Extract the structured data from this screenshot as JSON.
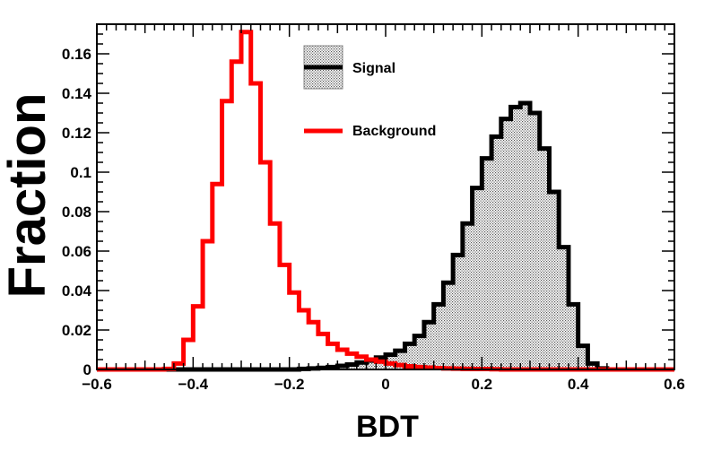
{
  "chart_data": {
    "type": "histogram",
    "xlabel": "BDT",
    "ylabel": "Fraction",
    "xlim": [
      -0.6,
      0.6
    ],
    "ylim": [
      0,
      0.175
    ],
    "grid": false,
    "legend_position": "top-center",
    "x_ticks": [
      -0.6,
      -0.4,
      -0.2,
      0,
      0.2,
      0.4,
      0.6
    ],
    "x_tick_labels": [
      "−0.6",
      "−0.4",
      "−0.2",
      "0",
      "0.2",
      "0.4",
      "0.6"
    ],
    "y_ticks": [
      0,
      0.02,
      0.04,
      0.06,
      0.08,
      0.1,
      0.12,
      0.14,
      0.16
    ],
    "y_tick_labels": [
      "0",
      "0.02",
      "0.04",
      "0.06",
      "0.08",
      "0.1",
      "0.12",
      "0.14",
      "0.16"
    ],
    "bin_edges": [
      -0.6,
      -0.58,
      -0.56,
      -0.54,
      -0.52,
      -0.5,
      -0.48,
      -0.46,
      -0.44,
      -0.42,
      -0.4,
      -0.38,
      -0.36,
      -0.34,
      -0.32,
      -0.3,
      -0.28,
      -0.26,
      -0.24,
      -0.22,
      -0.2,
      -0.18,
      -0.16,
      -0.14,
      -0.12,
      -0.1,
      -0.08,
      -0.06,
      -0.04,
      -0.02,
      0,
      0.02,
      0.04,
      0.06,
      0.08,
      0.1,
      0.12,
      0.14,
      0.16,
      0.18,
      0.2,
      0.22,
      0.24,
      0.26,
      0.28,
      0.3,
      0.32,
      0.34,
      0.36,
      0.38,
      0.4,
      0.42,
      0.44,
      0.46,
      0.48,
      0.5,
      0.52,
      0.54,
      0.56,
      0.58,
      0.6
    ],
    "series": [
      {
        "name": "Signal",
        "color": "#000000",
        "fill": "hatched-gray",
        "values": [
          0,
          0,
          0,
          0,
          0,
          0,
          0,
          0,
          0,
          0,
          0,
          0,
          0,
          0,
          0,
          0,
          0,
          0,
          0,
          0,
          0,
          0.0003,
          0.0005,
          0.0008,
          0.0012,
          0.0018,
          0.0025,
          0.0035,
          0.0045,
          0.006,
          0.0075,
          0.0095,
          0.013,
          0.017,
          0.024,
          0.033,
          0.044,
          0.058,
          0.074,
          0.092,
          0.107,
          0.118,
          0.127,
          0.133,
          0.135,
          0.13,
          0.112,
          0.09,
          0.062,
          0.033,
          0.012,
          0.003,
          0.0005,
          0,
          0,
          0,
          0,
          0,
          0,
          0
        ]
      },
      {
        "name": "Background",
        "color": "#ff0000",
        "values": [
          0,
          0,
          0,
          0,
          0,
          0,
          0,
          0.0003,
          0.003,
          0.015,
          0.032,
          0.065,
          0.094,
          0.136,
          0.156,
          0.171,
          0.145,
          0.105,
          0.074,
          0.053,
          0.039,
          0.03,
          0.024,
          0.018,
          0.013,
          0.01,
          0.008,
          0.0065,
          0.005,
          0.004,
          0.003,
          0.0022,
          0.0016,
          0.0012,
          0.0009,
          0.0007,
          0.0005,
          0.0004,
          0.0003,
          0.0002,
          0.0002,
          0.0001,
          0,
          0,
          0,
          0,
          0,
          0,
          0,
          0,
          0,
          0,
          0,
          0,
          0,
          0,
          0,
          0,
          0,
          0
        ]
      }
    ]
  }
}
